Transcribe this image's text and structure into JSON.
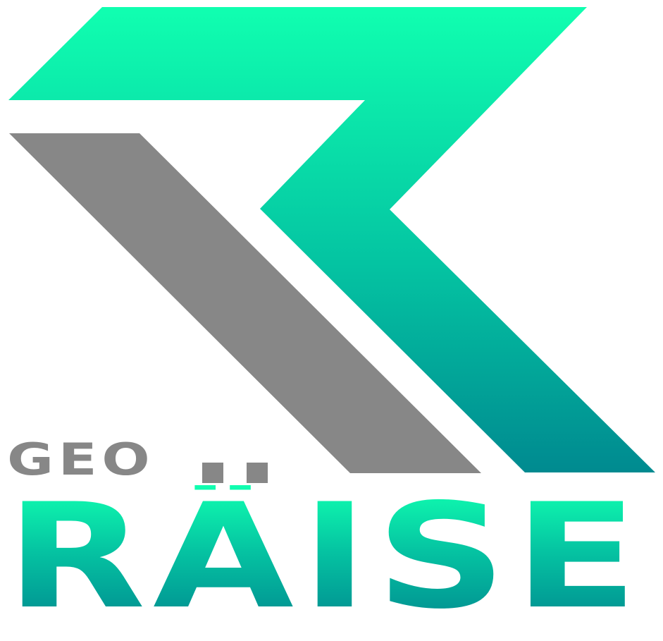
{
  "logo": {
    "line1": "GEO",
    "line2": "RÄISE",
    "colors": {
      "gradient_top": "#10ffb0",
      "gradient_mid": "#05c4a2",
      "gradient_bottom": "#00898f",
      "gray": "#878787",
      "background": "#ffffff"
    },
    "mark_icon": "stylized-r-logo-icon"
  }
}
